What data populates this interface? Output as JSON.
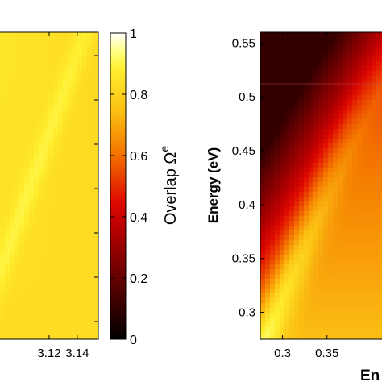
{
  "colors": {
    "background": "#ffffff",
    "colormap_stops": [
      {
        "v": 0.0,
        "color": "#000000"
      },
      {
        "v": 0.38,
        "color": "#c00000"
      },
      {
        "v": 0.45,
        "color": "#e00b00"
      },
      {
        "v": 0.62,
        "color": "#f57d00"
      },
      {
        "v": 0.75,
        "color": "#fbc214"
      },
      {
        "v": 0.88,
        "color": "#ffee2e"
      },
      {
        "v": 0.94,
        "color": "#ffff80"
      },
      {
        "v": 1.0,
        "color": "#ffffff"
      }
    ]
  },
  "chart_data": [
    {
      "type": "heatmap",
      "panel": "left",
      "title": "",
      "xlabel": "",
      "ylabel": "",
      "x_ticks": [
        3.12,
        3.14
      ],
      "x_tick_labels": [
        "3.12",
        "3.14"
      ],
      "xlim": [
        3.085,
        3.155
      ],
      "ylim": [
        0,
        1
      ],
      "value_range": [
        0.78,
        0.9
      ],
      "description_of_field": "mostly yellow, diagonal band from lower-left to upper-right",
      "colorbar": {
        "label_main": "Overlap Ω",
        "label_superscript": "e",
        "ticks": [
          0,
          0.2,
          0.4,
          0.6,
          0.8,
          1
        ],
        "tick_labels": [
          "0",
          "0.2",
          "0.4",
          "0.6",
          "0.8",
          "1"
        ],
        "range": [
          0,
          1
        ]
      }
    },
    {
      "type": "heatmap",
      "panel": "right",
      "title": "",
      "xlabel": "En",
      "ylabel": "Energy (eV)",
      "x_ticks": [
        0.3,
        0.35
      ],
      "x_tick_labels": [
        "0.3",
        "0.35"
      ],
      "xlim": [
        0.275,
        0.42
      ],
      "y_ticks": [
        0.3,
        0.35,
        0.4,
        0.45,
        0.5,
        0.55
      ],
      "y_tick_labels": [
        "0.3",
        "0.35",
        "0.4",
        "0.45",
        "0.5",
        "0.55"
      ],
      "ylim": [
        0.275,
        0.56
      ],
      "value_range": [
        0.1,
        0.78
      ],
      "dark_region_upper_left": {
        "x": [
          0.275,
          0.3
        ],
        "y": [
          0.51,
          0.56
        ]
      }
    }
  ]
}
